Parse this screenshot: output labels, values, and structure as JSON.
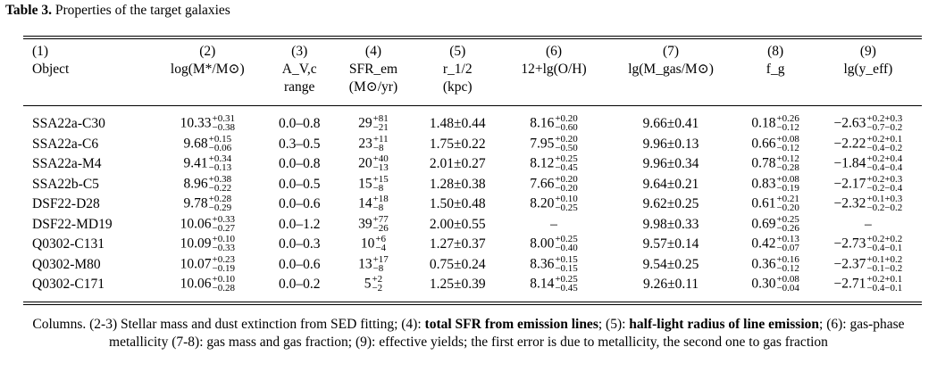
{
  "caption": {
    "label": "Table 3.",
    "text": "Properties of the target galaxies"
  },
  "columns": [
    {
      "num": "(1)",
      "name": "Object",
      "unit": ""
    },
    {
      "num": "(2)",
      "name": "log(M*/M⊙)",
      "unit": ""
    },
    {
      "num": "(3)",
      "name": "A_V,c",
      "unit": "range"
    },
    {
      "num": "(4)",
      "name": "SFR_em",
      "unit": "(M⊙/yr)"
    },
    {
      "num": "(5)",
      "name": "r_1/2",
      "unit": "(kpc)"
    },
    {
      "num": "(6)",
      "name": "12+lg(O/H)",
      "unit": ""
    },
    {
      "num": "(7)",
      "name": "lg(M_gas/M⊙)",
      "unit": ""
    },
    {
      "num": "(8)",
      "name": "f_g",
      "unit": ""
    },
    {
      "num": "(9)",
      "name": "lg(y_eff)",
      "unit": ""
    }
  ],
  "rows": [
    {
      "object": "SSA22a-C30",
      "mass": {
        "v": "10.33",
        "up": "+0.31",
        "lo": "−0.38"
      },
      "av": "0.0–0.8",
      "sfr": {
        "v": "29",
        "up": "+81",
        "lo": "−21"
      },
      "r": "1.48±0.44",
      "oh": {
        "v": "8.16",
        "up": "+0.20",
        "lo": "−0.60"
      },
      "mgas": "9.66±0.41",
      "fg": {
        "v": "0.18",
        "up": "+0.26",
        "lo": "−0.12"
      },
      "yeff": {
        "v": "−2.63",
        "up": "+0.2+0.3",
        "lo": "−0.7−0.2"
      }
    },
    {
      "object": "SSA22a-C6",
      "mass": {
        "v": "9.68",
        "up": "+0.15",
        "lo": "−0.06"
      },
      "av": "0.3–0.5",
      "sfr": {
        "v": "23",
        "up": "+11",
        "lo": "−8"
      },
      "r": "1.75±0.22",
      "oh": {
        "v": "7.95",
        "up": "+0.20",
        "lo": "−0.50"
      },
      "mgas": "9.96±0.13",
      "fg": {
        "v": "0.66",
        "up": "+0.08",
        "lo": "−0.12"
      },
      "yeff": {
        "v": "−2.22",
        "up": "+0.2+0.1",
        "lo": "−0.4−0.2"
      }
    },
    {
      "object": "SSA22a-M4",
      "mass": {
        "v": "9.41",
        "up": "+0.34",
        "lo": "−0.13"
      },
      "av": "0.0–0.8",
      "sfr": {
        "v": "20",
        "up": "+40",
        "lo": "−13"
      },
      "r": "2.01±0.27",
      "oh": {
        "v": "8.12",
        "up": "+0.25",
        "lo": "−0.45"
      },
      "mgas": "9.96±0.34",
      "fg": {
        "v": "0.78",
        "up": "+0.12",
        "lo": "−0.28"
      },
      "yeff": {
        "v": "−1.84",
        "up": "+0.2+0.4",
        "lo": "−0.4−0.4"
      }
    },
    {
      "object": "SSA22b-C5",
      "mass": {
        "v": "8.96",
        "up": "+0.38",
        "lo": "−0.22"
      },
      "av": "0.0–0.5",
      "sfr": {
        "v": "15",
        "up": "+15",
        "lo": "−8"
      },
      "r": "1.28±0.38",
      "oh": {
        "v": "7.66",
        "up": "+0.20",
        "lo": "−0.20"
      },
      "mgas": "9.64±0.21",
      "fg": {
        "v": "0.83",
        "up": "+0.08",
        "lo": "−0.19"
      },
      "yeff": {
        "v": "−2.17",
        "up": "+0.2+0.3",
        "lo": "−0.2−0.4"
      }
    },
    {
      "object": "DSF22-D28",
      "mass": {
        "v": "9.78",
        "up": "+0.28",
        "lo": "−0.29"
      },
      "av": "0.0–0.6",
      "sfr": {
        "v": "14",
        "up": "+18",
        "lo": "−8"
      },
      "r": "1.50±0.48",
      "oh": {
        "v": "8.20",
        "up": "+0.10",
        "lo": "−0.25"
      },
      "mgas": "9.62±0.25",
      "fg": {
        "v": "0.61",
        "up": "+0.21",
        "lo": "−0.20"
      },
      "yeff": {
        "v": "−2.32",
        "up": "+0.1+0.3",
        "lo": "−0.2−0.2"
      }
    },
    {
      "object": "DSF22-MD19",
      "mass": {
        "v": "10.06",
        "up": "+0.33",
        "lo": "−0.27"
      },
      "av": "0.0–1.2",
      "sfr": {
        "v": "39",
        "up": "+77",
        "lo": "−26"
      },
      "r": "2.00±0.55",
      "oh": {
        "v": "–",
        "up": "",
        "lo": ""
      },
      "mgas": "9.98±0.33",
      "fg": {
        "v": "0.69",
        "up": "+0.25",
        "lo": "−0.26"
      },
      "yeff": {
        "v": "–",
        "up": "",
        "lo": ""
      }
    },
    {
      "object": "Q0302-C131",
      "mass": {
        "v": "10.09",
        "up": "+0.10",
        "lo": "−0.33"
      },
      "av": "0.0–0.3",
      "sfr": {
        "v": "10",
        "up": "+6",
        "lo": "−4"
      },
      "r": "1.27±0.37",
      "oh": {
        "v": "8.00",
        "up": "+0.25",
        "lo": "−0.40"
      },
      "mgas": "9.57±0.14",
      "fg": {
        "v": "0.42",
        "up": "+0.13",
        "lo": "−0.07"
      },
      "yeff": {
        "v": "−2.73",
        "up": "+0.2+0.2",
        "lo": "−0.4−0.1"
      }
    },
    {
      "object": "Q0302-M80",
      "mass": {
        "v": "10.07",
        "up": "+0.23",
        "lo": "−0.19"
      },
      "av": "0.0–0.6",
      "sfr": {
        "v": "13",
        "up": "+17",
        "lo": "−8"
      },
      "r": "0.75±0.24",
      "oh": {
        "v": "8.36",
        "up": "+0.15",
        "lo": "−0.15"
      },
      "mgas": "9.54±0.25",
      "fg": {
        "v": "0.36",
        "up": "+0.16",
        "lo": "−0.12"
      },
      "yeff": {
        "v": "−2.37",
        "up": "+0.1+0.2",
        "lo": "−0.1−0.2"
      }
    },
    {
      "object": "Q0302-C171",
      "mass": {
        "v": "10.06",
        "up": "+0.10",
        "lo": "−0.28"
      },
      "av": "0.0–0.2",
      "sfr": {
        "v": "5",
        "up": "+2",
        "lo": "−2"
      },
      "r": "1.25±0.39",
      "oh": {
        "v": "8.14",
        "up": "+0.25",
        "lo": "−0.45"
      },
      "mgas": "9.26±0.11",
      "fg": {
        "v": "0.30",
        "up": "+0.08",
        "lo": "−0.04"
      },
      "yeff": {
        "v": "−2.71",
        "up": "+0.2+0.1",
        "lo": "−0.4−0.1"
      }
    }
  ],
  "notes": {
    "p1": "Columns. (2-3) Stellar mass and dust extinction from SED fitting; (4): ",
    "b1": "total SFR from emission lines",
    "p2": "; (5): ",
    "b2": "half-light radius of line emission",
    "p3": "; (6): gas-phase metallicity (7-8): gas mass and gas fraction; (9): effective yields; the first error is due to metallicity, the second one to gas fraction"
  }
}
